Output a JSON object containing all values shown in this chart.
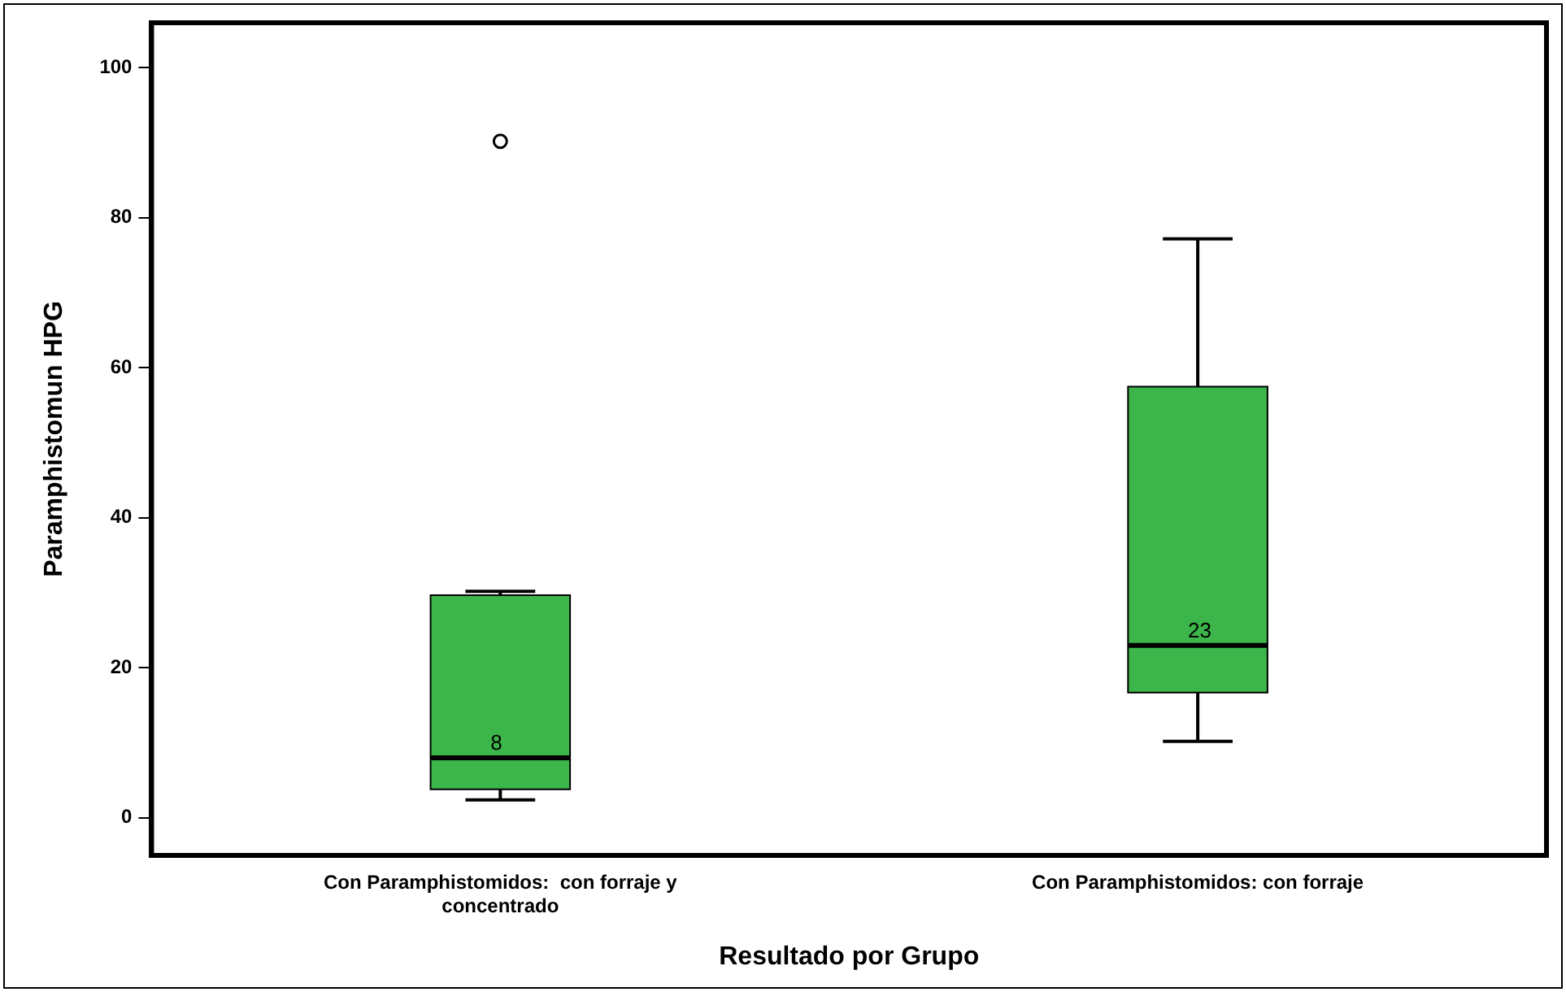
{
  "chart_data": {
    "type": "box",
    "xlabel": "Resultado por Grupo",
    "ylabel": "Paramphistomun HPG",
    "categories": [
      "Con Paramphistomidos:  con forraje y concentrado",
      "Con Paramphistomidos: con forraje"
    ],
    "color": "#3cb54a",
    "boxes": [
      {
        "low": 2.4,
        "q1": 3.8,
        "median": 8,
        "q3": 29.7,
        "high": 30.2,
        "outliers": [
          90.2
        ]
      },
      {
        "low": 10.2,
        "q1": 16.7,
        "median": 23,
        "q3": 57.5,
        "high": 77.2
      }
    ],
    "annotations": [
      {
        "text": "8",
        "x": "Con Paramphistomidos:  con forraje y concentrado",
        "y": 8
      },
      {
        "text": "23",
        "x": "Con Paramphistomidos: con forraje",
        "y": 23
      }
    ],
    "ylim": [
      -5,
      106
    ],
    "yticks": [
      0,
      20,
      40,
      60,
      80,
      100
    ],
    "grid": false,
    "legend": false
  }
}
